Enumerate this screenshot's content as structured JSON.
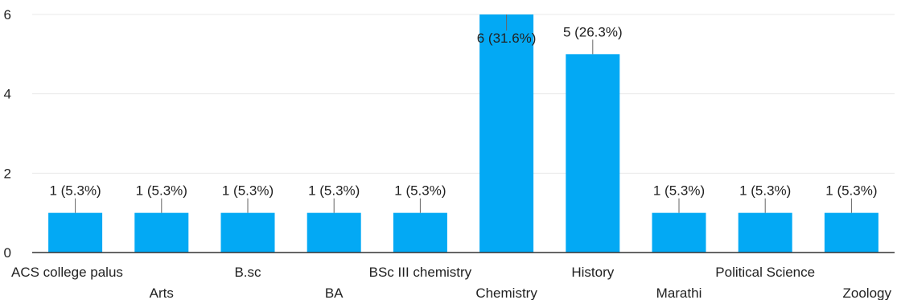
{
  "chart_data": {
    "type": "bar",
    "title": "",
    "xlabel": "",
    "ylabel": "",
    "categories": [
      "ACS college palus",
      "Arts",
      "B.sc",
      "BA",
      "BSc III chemistry",
      "Chemistry",
      "History",
      "Marathi",
      "Political Science",
      "Zoology"
    ],
    "values": [
      1,
      1,
      1,
      1,
      1,
      6,
      5,
      1,
      1,
      1
    ],
    "data_labels": [
      "1 (5.3%)",
      "1 (5.3%)",
      "1 (5.3%)",
      "1 (5.3%)",
      "1 (5.3%)",
      "6 (31.6%)",
      "5 (26.3%)",
      "1 (5.3%)",
      "1 (5.3%)",
      "1 (5.3%)"
    ],
    "ylim": [
      0,
      6
    ],
    "yticks": [
      0,
      2,
      4,
      6
    ],
    "ytick_labels": [
      "0",
      "2",
      "4",
      "6"
    ],
    "grid": true,
    "legend": "none",
    "colors": {
      "bar": "#03a9f4",
      "grid": "#e8e8e8",
      "axis": "#333333",
      "text": "#222222",
      "leader": "#666666"
    }
  }
}
